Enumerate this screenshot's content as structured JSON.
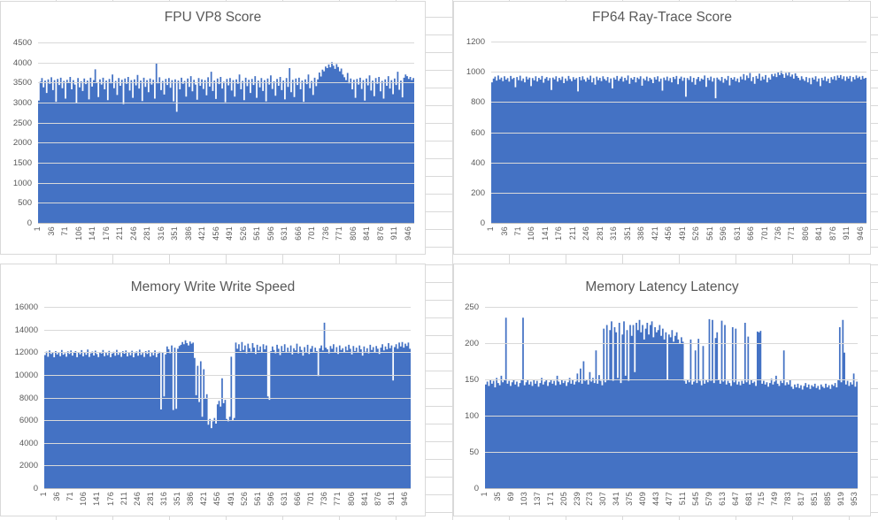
{
  "colors": {
    "bar": "#4472c4",
    "chart_background": "#ffffff",
    "chart_border": "#d9d9d9",
    "plot_gridline": "#d9d9d9",
    "axis_line": "#bfbfbf",
    "text": "#595959",
    "sheet_gridline": "#d9d9d9"
  },
  "chart_data": [
    {
      "id": "fpu-vp8-score",
      "type": "bar",
      "title": "FPU VP8 Score",
      "xlabel": "",
      "ylabel": "",
      "ylim": [
        0,
        4500
      ],
      "yticks": [
        0,
        500,
        1000,
        1500,
        2000,
        2500,
        3000,
        3500,
        4000,
        4500
      ],
      "xticks": [
        "1",
        "36",
        "71",
        "106",
        "141",
        "176",
        "211",
        "246",
        "281",
        "316",
        "351",
        "386",
        "421",
        "456",
        "491",
        "526",
        "561",
        "596",
        "631",
        "666",
        "701",
        "736",
        "771",
        "806",
        "841",
        "876",
        "911",
        "946"
      ],
      "n_points": 960,
      "grid": true,
      "legend": false,
      "values": [
        3050,
        3520,
        3610,
        3380,
        3550,
        3240,
        3580,
        3470,
        3630,
        3310,
        3560,
        3020,
        3590,
        3440,
        3620,
        3360,
        3540,
        3100,
        3570,
        3490,
        3640,
        3330,
        3560,
        3450,
        2980,
        3610,
        3380,
        3530,
        3290,
        3600,
        3460,
        3550,
        3080,
        3620,
        3400,
        3560,
        3830,
        3510,
        3140,
        3580,
        3450,
        3620,
        3330,
        3550,
        3060,
        3590,
        3480,
        3700,
        3360,
        3540,
        3190,
        3610,
        3420,
        3570,
        2960,
        3600,
        3470,
        3640,
        3300,
        3560,
        3120,
        3580,
        3430,
        3690,
        3350,
        3550,
        3040,
        3620,
        3390,
        3560,
        3260,
        3600,
        3450,
        3570,
        3100,
        3970,
        3480,
        3630,
        3310,
        3540,
        3200,
        3590,
        3440,
        3610,
        3370,
        3560,
        3030,
        3580,
        2770,
        3550,
        3330,
        3620,
        3470,
        3540,
        3150,
        3600,
        3390,
        3660,
        3280,
        3570,
        3450,
        3070,
        3610,
        3420,
        3580,
        3340,
        3560,
        3180,
        3630,
        3400,
        3770,
        3290,
        3550,
        3090,
        3600,
        3460,
        3640,
        3350,
        3520,
        3010,
        3590,
        3430,
        3610,
        3300,
        3560,
        3150,
        3580,
        3470,
        3700,
        3330,
        3540,
        3060,
        3620,
        3410,
        3570,
        3240,
        3590,
        3440,
        3660,
        3120,
        3550,
        3380,
        3610,
        3290,
        3560,
        3030,
        3600,
        3450,
        3680,
        3340,
        3530,
        3170,
        3590,
        3420,
        3640,
        3310,
        3550,
        3080,
        3610,
        3390,
        3860,
        3260,
        3570,
        3140,
        3600,
        3440,
        3620,
        3330,
        3550,
        3020,
        3580,
        3460,
        3700,
        3360,
        3540,
        3190,
        3620,
        3410,
        3580,
        3750,
        3650,
        3820,
        3780,
        3900,
        3860,
        3950,
        3880,
        4010,
        3920,
        3840,
        3960,
        3890,
        3780,
        3850,
        3700,
        3630,
        3560,
        3740,
        3480,
        3600,
        3330,
        3570,
        3120,
        3590,
        3450,
        3620,
        3340,
        3560,
        3050,
        3600,
        3430,
        3680,
        3300,
        3550,
        3160,
        3610,
        3470,
        3640,
        3280,
        3540,
        3100,
        3580,
        3420,
        3660,
        3350,
        3560,
        3210,
        3600,
        3440,
        3770,
        3320,
        3550,
        3130,
        3620,
        3700,
        3660,
        3590,
        3640,
        3560,
        3610
      ]
    },
    {
      "id": "fp64-ray-trace-score",
      "type": "bar",
      "title": "FP64 Ray-Trace Score",
      "xlabel": "",
      "ylabel": "",
      "ylim": [
        0,
        1200
      ],
      "yticks": [
        0,
        200,
        400,
        600,
        800,
        1000,
        1200
      ],
      "xticks": [
        "1",
        "36",
        "71",
        "106",
        "141",
        "176",
        "211",
        "246",
        "281",
        "316",
        "351",
        "386",
        "421",
        "456",
        "491",
        "526",
        "561",
        "596",
        "631",
        "666",
        "701",
        "736",
        "771",
        "806",
        "841",
        "876",
        "911",
        "946"
      ],
      "n_points": 960,
      "grid": true,
      "legend": false,
      "values": [
        930,
        955,
        968,
        942,
        975,
        950,
        962,
        938,
        970,
        948,
        958,
        935,
        972,
        952,
        960,
        898,
        965,
        945,
        974,
        940,
        956,
        930,
        968,
        950,
        962,
        905,
        958,
        944,
        970,
        936,
        960,
        948,
        972,
        928,
        955,
        965,
        942,
        958,
        880,
        962,
        950,
        970,
        935,
        960,
        946,
        968,
        925,
        956,
        940,
        972,
        952,
        938,
        964,
        948,
        958,
        870,
        966,
        944,
        970,
        950,
        935,
        962,
        948,
        974,
        930,
        958,
        915,
        968,
        945,
        960,
        938,
        970,
        952,
        942,
        965,
        928,
        956,
        890,
        962,
        948,
        972,
        940,
        955,
        968,
        935,
        960,
        945,
        975,
        920,
        958,
        948,
        966,
        930,
        962,
        952,
        970,
        908,
        956,
        944,
        968,
        938,
        960,
        950,
        925,
        964,
        948,
        970,
        935,
        955,
        875,
        962,
        945,
        968,
        940,
        958,
        930,
        966,
        952,
        972,
        918,
        955,
        968,
        940,
        962,
        835,
        958,
        946,
        970,
        932,
        960,
        915,
        952,
        966,
        938,
        956,
        948,
        975,
        900,
        960,
        945,
        968,
        935,
        958,
        825,
        962,
        950,
        940,
        966,
        928,
        955,
        945,
        972,
        910,
        960,
        948,
        964,
        938,
        956,
        930,
        968,
        950,
        985,
        945,
        975,
        958,
        992,
        938,
        965,
        920,
        972,
        955,
        988,
        942,
        968,
        950,
        978,
        930,
        962,
        948,
        985,
        970,
        988,
        965,
        995,
        978,
        1005,
        985,
        960,
        992,
        975,
        998,
        968,
        982,
        955,
        990,
        972,
        960,
        945,
        970,
        952,
        940,
        965,
        930,
        958,
        918,
        962,
        948,
        970,
        935,
        956,
        905,
        960,
        944,
        968,
        938,
        955,
        925,
        964,
        950,
        970,
        945,
        975,
        960,
        978,
        952,
        970,
        940,
        968,
        955,
        972,
        935,
        965,
        950,
        975,
        958,
        968,
        948,
        972,
        955,
        960
      ]
    },
    {
      "id": "memory-write-write-speed",
      "type": "bar",
      "title": "Memory Write Write Speed",
      "xlabel": "",
      "ylabel": "",
      "ylim": [
        0,
        16000
      ],
      "yticks": [
        0,
        2000,
        4000,
        6000,
        8000,
        10000,
        12000,
        14000,
        16000
      ],
      "xticks": [
        "1",
        "36",
        "71",
        "106",
        "141",
        "176",
        "211",
        "246",
        "281",
        "316",
        "351",
        "386",
        "421",
        "456",
        "491",
        "526",
        "561",
        "596",
        "631",
        "666",
        "701",
        "736",
        "771",
        "806",
        "841",
        "876",
        "911",
        "946"
      ],
      "n_points": 960,
      "grid": true,
      "legend": false,
      "values": [
        11750,
        12050,
        11600,
        12150,
        11850,
        11950,
        11550,
        12100,
        11800,
        12000,
        11650,
        12200,
        11780,
        11900,
        11600,
        12080,
        11850,
        12150,
        11700,
        11980,
        12100,
        11560,
        11950,
        11820,
        12180,
        11640,
        12020,
        11760,
        12230,
        11580,
        11900,
        12060,
        11710,
        12140,
        11830,
        11570,
        12010,
        11880,
        12200,
        11650,
        11960,
        11740,
        12120,
        11560,
        11890,
        12040,
        11680,
        12210,
        11770,
        11940,
        11590,
        12090,
        11860,
        12160,
        11630,
        11990,
        11720,
        12130,
        11550,
        11910,
        12070,
        11690,
        12220,
        11760,
        11930,
        11580,
        12100,
        11840,
        12170,
        11610,
        11970,
        11730,
        12150,
        11560,
        11880,
        12040,
        6950,
        12000,
        8100,
        11820,
        12500,
        12260,
        11900,
        12600,
        6900,
        12400,
        7000,
        12300,
        12550,
        12650,
        12900,
        12700,
        13050,
        12800,
        12600,
        12950,
        12750,
        12850,
        11500,
        8200,
        10800,
        7600,
        11200,
        6300,
        10500,
        7900,
        8300,
        5600,
        6100,
        5300,
        5900,
        6200,
        5700,
        7400,
        7700,
        7200,
        9700,
        7500,
        7800,
        6100,
        5900,
        6300,
        11600,
        6000,
        6200,
        12850,
        12300,
        12700,
        12100,
        12900,
        12200,
        12600,
        11900,
        12750,
        12350,
        12050,
        12800,
        12400,
        11850,
        12650,
        12150,
        12500,
        11950,
        12700,
        12250,
        12600,
        8100,
        7800,
        12100,
        12500,
        12200,
        11900,
        12650,
        12300,
        11750,
        12550,
        12100,
        12700,
        11950,
        12400,
        12050,
        12600,
        11800,
        12350,
        12150,
        12750,
        11900,
        12500,
        12200,
        11700,
        12450,
        12000,
        12650,
        11850,
        12300,
        12550,
        11950,
        12400,
        12100,
        9900,
        12350,
        12600,
        12150,
        14600,
        12400,
        12250,
        11900,
        12550,
        12300,
        12700,
        12000,
        12450,
        11850,
        12600,
        12200,
        12350,
        11950,
        12500,
        12150,
        12650,
        12300,
        11800,
        12550,
        12100,
        12400,
        11950,
        12600,
        12250,
        11700,
        12500,
        12050,
        12350,
        11900,
        12650,
        12200,
        12450,
        12000,
        12550,
        12300,
        11850,
        12400,
        12700,
        12150,
        12500,
        12250,
        12800,
        12350,
        12600,
        9500,
        12450,
        12700,
        12300,
        12850,
        12500,
        12900,
        12400,
        12750,
        12550,
        12850,
        12300
      ]
    },
    {
      "id": "memory-latency-latency",
      "type": "bar",
      "title": "Memory Latency Latency",
      "xlabel": "",
      "ylabel": "",
      "ylim": [
        0,
        250
      ],
      "yticks": [
        0,
        50,
        100,
        150,
        200,
        250
      ],
      "xticks": [
        "1",
        "35",
        "69",
        "103",
        "137",
        "171",
        "205",
        "239",
        "273",
        "307",
        "341",
        "375",
        "409",
        "443",
        "477",
        "511",
        "545",
        "579",
        "613",
        "647",
        "681",
        "715",
        "749",
        "783",
        "817",
        "851",
        "885",
        "919",
        "953"
      ],
      "n_points": 960,
      "grid": true,
      "legend": false,
      "values": [
        143,
        147,
        141,
        150,
        144,
        148,
        139,
        152,
        145,
        142,
        155,
        146,
        149,
        235,
        144,
        148,
        141,
        146,
        150,
        143,
        147,
        140,
        145,
        149,
        235,
        142,
        146,
        149,
        143,
        147,
        141,
        150,
        144,
        148,
        140,
        145,
        152,
        143,
        147,
        150,
        141,
        146,
        149,
        144,
        148,
        142,
        155,
        147,
        143,
        150,
        145,
        148,
        141,
        146,
        152,
        144,
        149,
        143,
        147,
        158,
        146,
        165,
        144,
        175,
        148,
        150,
        143,
        160,
        147,
        152,
        145,
        190,
        144,
        156,
        148,
        142,
        220,
        146,
        225,
        150,
        218,
        230,
        148,
        222,
        215,
        152,
        228,
        145,
        212,
        230,
        155,
        218,
        148,
        225,
        210,
        225,
        160,
        228,
        218,
        232,
        215,
        225,
        205,
        220,
        228,
        212,
        225,
        230,
        208,
        222,
        215,
        218,
        225,
        210,
        220,
        205,
        215,
        150,
        212,
        208,
        218,
        202,
        210,
        215,
        205,
        200,
        208,
        202,
        148,
        144,
        150,
        146,
        205,
        143,
        147,
        190,
        145,
        206,
        148,
        142,
        196,
        144,
        150,
        146,
        233,
        148,
        232,
        145,
        207,
        215,
        150,
        144,
        231,
        147,
        225,
        143,
        148,
        145,
        141,
        222,
        146,
        220,
        143,
        147,
        142,
        148,
        144,
        228,
        146,
        209,
        143,
        150,
        145,
        147,
        141,
        216,
        215,
        217,
        144,
        148,
        143,
        146,
        140,
        145,
        151,
        143,
        147,
        155,
        144,
        141,
        148,
        145,
        190,
        142,
        146,
        143,
        149,
        140,
        137,
        143,
        139,
        144,
        138,
        142,
        136,
        141,
        145,
        139,
        143,
        137,
        142,
        140,
        144,
        138,
        141,
        136,
        143,
        140,
        138,
        144,
        139,
        142,
        137,
        143,
        141,
        145,
        139,
        150,
        222,
        146,
        232,
        187,
        143,
        148,
        141,
        146,
        143,
        158,
        140,
        147
      ]
    }
  ]
}
